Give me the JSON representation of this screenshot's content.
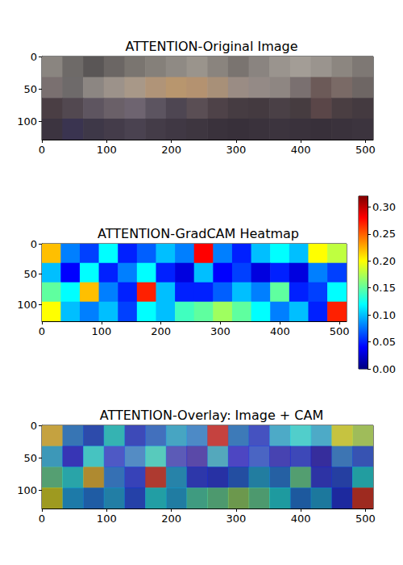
{
  "chart_data": [
    {
      "type": "image",
      "title": "ATTENTION-Original Image",
      "xlim": [
        0,
        512
      ],
      "ylim": [
        128,
        0
      ],
      "xticks": [
        0,
        100,
        200,
        300,
        400,
        500
      ],
      "yticks": [
        0,
        50,
        100
      ],
      "pixels": [
        [
          "#8a8580",
          "#6e6a68",
          "#5a5656",
          "#6b6664",
          "#7a7570",
          "#85807a",
          "#8f8a84",
          "#9a948c",
          "#8a847e",
          "#7a7470",
          "#8a8480",
          "#9a948e",
          "#a39d96",
          "#9a948e",
          "#8c8680",
          "#7e7874"
        ],
        [
          "#7a7070",
          "#6e6a6a",
          "#8c8682",
          "#9c928a",
          "#a89888",
          "#b09478",
          "#b8966e",
          "#b49270",
          "#a89078",
          "#9a8c84",
          "#948a86",
          "#8e8682",
          "#7a7070",
          "#6c5a58",
          "#7a6a66",
          "#6e6664"
        ],
        [
          "#4a3e44",
          "#524850",
          "#5e5560",
          "#6a6068",
          "#6e6470",
          "#5c5460",
          "#4e4652",
          "#5a4e54",
          "#4e4248",
          "#463c42",
          "#443a40",
          "#4a4046",
          "#463c40",
          "#5a4648",
          "#4a3e42",
          "#443a40"
        ],
        [
          "#3c3440",
          "#3a3450",
          "#3e3848",
          "#443c4a",
          "#4a4250",
          "#443c48",
          "#403844",
          "#3e3640",
          "#3a323c",
          "#38303a",
          "#3a323c",
          "#3c343e",
          "#3a323c",
          "#38303a",
          "#3a323c",
          "#3c343e"
        ]
      ]
    },
    {
      "type": "heatmap",
      "title": "ATTENTION-GradCAM Heatmap",
      "xlim": [
        0,
        512
      ],
      "ylim": [
        128,
        0
      ],
      "xticks": [
        0,
        100,
        200,
        300,
        400,
        500
      ],
      "yticks": [
        0,
        50,
        100
      ],
      "cells": [
        [
          0.22,
          0.08,
          0.06,
          0.12,
          0.05,
          0.07,
          0.1,
          0.08,
          0.28,
          0.08,
          0.05,
          0.1,
          0.12,
          0.1,
          0.2,
          0.18
        ],
        [
          0.1,
          0.04,
          0.12,
          0.05,
          0.08,
          0.12,
          0.05,
          0.03,
          0.1,
          0.04,
          0.06,
          0.03,
          0.05,
          0.03,
          0.08,
          0.06
        ],
        [
          0.15,
          0.12,
          0.22,
          0.08,
          0.05,
          0.27,
          0.1,
          0.05,
          0.05,
          0.07,
          0.1,
          0.08,
          0.15,
          0.05,
          0.06,
          0.12
        ],
        [
          0.2,
          0.1,
          0.08,
          0.1,
          0.06,
          0.12,
          0.1,
          0.14,
          0.15,
          0.17,
          0.15,
          0.12,
          0.08,
          0.1,
          0.05,
          0.27
        ]
      ],
      "colorbar": {
        "range": [
          0,
          0.32
        ],
        "ticks": [
          {
            "value": 0,
            "label": "0.00"
          },
          {
            "value": 0.05,
            "label": "0.05"
          },
          {
            "value": 0.1,
            "label": "0.10"
          },
          {
            "value": 0.15,
            "label": "0.15"
          },
          {
            "value": 0.2,
            "label": "0.20"
          },
          {
            "value": 0.25,
            "label": "0.25"
          },
          {
            "value": 0.3,
            "label": "0.30"
          }
        ]
      }
    },
    {
      "type": "overlay",
      "title": "ATTENTION-Overlay: Image + CAM",
      "xlim": [
        0,
        512
      ],
      "ylim": [
        128,
        0
      ],
      "xticks": [
        0,
        100,
        200,
        300,
        400,
        500
      ],
      "yticks": [
        0,
        50,
        100
      ],
      "pixels": [
        [
          "#8a8580",
          "#6e6a68",
          "#5a5656",
          "#6b6664",
          "#7a7570",
          "#85807a",
          "#8f8a84",
          "#9a948c",
          "#8a847e",
          "#7a7470",
          "#8a8480",
          "#9a948e",
          "#a39d96",
          "#9a948e",
          "#8c8680",
          "#7e7874"
        ],
        [
          "#7a7070",
          "#6e6a6a",
          "#8c8682",
          "#9c928a",
          "#a89888",
          "#b09478",
          "#b8966e",
          "#b49270",
          "#a89078",
          "#9a8c84",
          "#948a86",
          "#8e8682",
          "#7a7070",
          "#6c5a58",
          "#7a6a66",
          "#6e6664"
        ],
        [
          "#4a3e44",
          "#524850",
          "#5e5560",
          "#6a6068",
          "#6e6470",
          "#5c5460",
          "#4e4652",
          "#5a4e54",
          "#4e4248",
          "#463c42",
          "#443a40",
          "#4a4046",
          "#463c40",
          "#5a4648",
          "#4a3e42",
          "#443a40"
        ],
        [
          "#3c3440",
          "#3a3450",
          "#3e3848",
          "#443c4a",
          "#4a4250",
          "#443c48",
          "#403844",
          "#3e3640",
          "#3a323c",
          "#38303a",
          "#3a323c",
          "#3c343e",
          "#3a323c",
          "#38303a",
          "#3a323c",
          "#3c343e"
        ]
      ],
      "cells": [
        [
          0.22,
          0.08,
          0.06,
          0.12,
          0.05,
          0.07,
          0.1,
          0.08,
          0.28,
          0.08,
          0.05,
          0.1,
          0.12,
          0.1,
          0.2,
          0.18
        ],
        [
          0.1,
          0.04,
          0.12,
          0.05,
          0.08,
          0.12,
          0.05,
          0.03,
          0.1,
          0.04,
          0.06,
          0.03,
          0.05,
          0.03,
          0.08,
          0.06
        ],
        [
          0.15,
          0.12,
          0.22,
          0.08,
          0.05,
          0.27,
          0.1,
          0.05,
          0.05,
          0.07,
          0.1,
          0.08,
          0.15,
          0.05,
          0.06,
          0.12
        ],
        [
          0.2,
          0.1,
          0.08,
          0.1,
          0.06,
          0.12,
          0.1,
          0.14,
          0.15,
          0.17,
          0.15,
          0.12,
          0.08,
          0.1,
          0.05,
          0.27
        ]
      ]
    }
  ]
}
